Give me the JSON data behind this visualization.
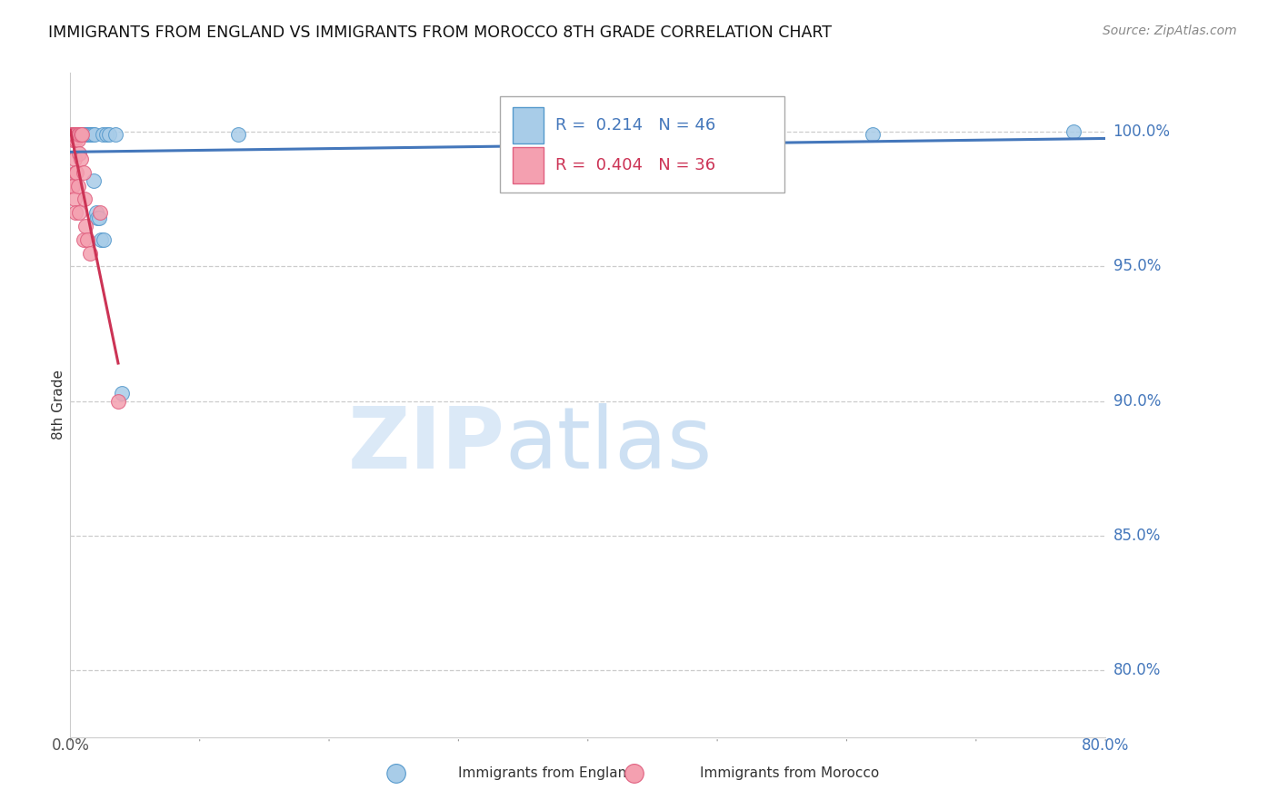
{
  "title": "IMMIGRANTS FROM ENGLAND VS IMMIGRANTS FROM MOROCCO 8TH GRADE CORRELATION CHART",
  "source": "Source: ZipAtlas.com",
  "ylabel": "8th Grade",
  "ytick_labels": [
    "100.0%",
    "95.0%",
    "90.0%",
    "85.0%",
    "80.0%"
  ],
  "ytick_values": [
    1.0,
    0.95,
    0.9,
    0.85,
    0.8
  ],
  "xlim": [
    0.0,
    0.8
  ],
  "ylim": [
    0.775,
    1.022
  ],
  "england_color": "#a8cce8",
  "morocco_color": "#f4a0b0",
  "england_edge_color": "#5599cc",
  "morocco_edge_color": "#e06080",
  "england_R": 0.214,
  "england_N": 46,
  "morocco_R": 0.404,
  "morocco_N": 36,
  "england_line_color": "#4477bb",
  "morocco_line_color": "#cc3355",
  "england_x": [
    0.002,
    0.003,
    0.004,
    0.005,
    0.005,
    0.006,
    0.006,
    0.007,
    0.007,
    0.007,
    0.008,
    0.008,
    0.008,
    0.009,
    0.009,
    0.009,
    0.01,
    0.01,
    0.01,
    0.011,
    0.011,
    0.011,
    0.012,
    0.012,
    0.013,
    0.013,
    0.014,
    0.015,
    0.015,
    0.016,
    0.017,
    0.018,
    0.019,
    0.02,
    0.021,
    0.022,
    0.024,
    0.025,
    0.026,
    0.028,
    0.03,
    0.035,
    0.04,
    0.13,
    0.62,
    0.775
  ],
  "england_y": [
    0.999,
    0.999,
    0.999,
    0.999,
    0.999,
    0.999,
    0.999,
    0.999,
    0.999,
    0.999,
    0.999,
    0.999,
    0.999,
    0.999,
    0.999,
    0.999,
    0.999,
    0.999,
    0.999,
    0.999,
    0.999,
    0.999,
    0.999,
    0.999,
    0.999,
    0.999,
    0.999,
    0.999,
    0.999,
    0.999,
    0.999,
    0.982,
    0.999,
    0.97,
    0.968,
    0.968,
    0.96,
    0.999,
    0.96,
    0.999,
    0.999,
    0.999,
    0.903,
    0.999,
    0.999,
    1.0
  ],
  "morocco_x": [
    0.001,
    0.001,
    0.001,
    0.001,
    0.002,
    0.002,
    0.002,
    0.002,
    0.003,
    0.003,
    0.003,
    0.003,
    0.004,
    0.004,
    0.004,
    0.004,
    0.005,
    0.005,
    0.005,
    0.006,
    0.006,
    0.006,
    0.007,
    0.007,
    0.007,
    0.008,
    0.008,
    0.009,
    0.01,
    0.01,
    0.011,
    0.012,
    0.013,
    0.015,
    0.023,
    0.037
  ],
  "morocco_y": [
    0.999,
    0.999,
    0.999,
    0.98,
    0.999,
    0.998,
    0.997,
    0.98,
    0.999,
    0.998,
    0.99,
    0.975,
    0.999,
    0.997,
    0.985,
    0.97,
    0.999,
    0.998,
    0.985,
    0.999,
    0.997,
    0.98,
    0.999,
    0.992,
    0.97,
    0.999,
    0.99,
    0.999,
    0.985,
    0.96,
    0.975,
    0.965,
    0.96,
    0.955,
    0.97,
    0.9
  ]
}
